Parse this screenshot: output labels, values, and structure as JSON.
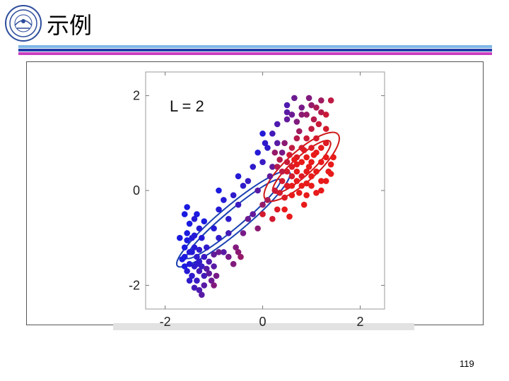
{
  "slide": {
    "title": "示例",
    "page_number": "119"
  },
  "colors": {
    "header_bar_light": "#7fb6e6",
    "header_bar_dark": "#1f3fa8",
    "header_bar_magenta": "#c83fc0",
    "blue": "#1a1ae0",
    "red": "#e81a1a"
  },
  "logo_icon": "university-seal-icon",
  "chart_data": {
    "type": "scatter",
    "annotation": "L = 2",
    "xlim": [
      -2.4,
      2.5
    ],
    "ylim": [
      -2.5,
      2.5
    ],
    "xticks": [
      -2,
      0,
      2
    ],
    "yticks": [
      -2,
      0,
      2
    ],
    "xtick_labels": [
      "-2",
      "0",
      "2"
    ],
    "ytick_labels": [
      "-2",
      "0",
      "2"
    ],
    "grid": false,
    "ellipses": [
      {
        "color": "#1a3fb0",
        "cx": -0.6,
        "cy": -0.6,
        "rx": 1.5,
        "ry": 0.28,
        "angle": 40
      },
      {
        "color": "#1a3fb0",
        "cx": -0.6,
        "cy": -0.6,
        "rx": 1.25,
        "ry": 0.18,
        "angle": 40
      },
      {
        "color": "#d01818",
        "cx": 0.8,
        "cy": 0.5,
        "rx": 1.0,
        "ry": 0.32,
        "angle": 42
      },
      {
        "color": "#d01818",
        "cx": 0.8,
        "cy": 0.5,
        "rx": 0.78,
        "ry": 0.2,
        "angle": 42
      }
    ],
    "points": [
      {
        "x": -1.6,
        "y": -0.5,
        "t": 0.0
      },
      {
        "x": -1.5,
        "y": -0.7,
        "t": 0.0
      },
      {
        "x": -1.4,
        "y": -0.6,
        "t": 0.05
      },
      {
        "x": -1.55,
        "y": -0.9,
        "t": 0.0
      },
      {
        "x": -1.45,
        "y": -1.0,
        "t": 0.05
      },
      {
        "x": -1.3,
        "y": -0.8,
        "t": 0.05
      },
      {
        "x": -1.6,
        "y": -1.2,
        "t": 0.0
      },
      {
        "x": -1.5,
        "y": -1.3,
        "t": 0.05
      },
      {
        "x": -1.4,
        "y": -1.2,
        "t": 0.05
      },
      {
        "x": -1.35,
        "y": -1.4,
        "t": 0.1
      },
      {
        "x": -1.6,
        "y": -1.4,
        "t": 0.0
      },
      {
        "x": -1.5,
        "y": -1.55,
        "t": 0.05
      },
      {
        "x": -1.4,
        "y": -1.6,
        "t": 0.1
      },
      {
        "x": -1.3,
        "y": -1.5,
        "t": 0.1
      },
      {
        "x": -1.55,
        "y": -1.7,
        "t": 0.05
      },
      {
        "x": -1.45,
        "y": -1.8,
        "t": 0.1
      },
      {
        "x": -1.35,
        "y": -1.9,
        "t": 0.15
      },
      {
        "x": -1.4,
        "y": -2.05,
        "t": 0.2
      },
      {
        "x": -1.3,
        "y": -2.1,
        "t": 0.25
      },
      {
        "x": -1.5,
        "y": -1.9,
        "t": 0.1
      },
      {
        "x": -1.2,
        "y": -1.8,
        "t": 0.2
      },
      {
        "x": -1.25,
        "y": -1.6,
        "t": 0.15
      },
      {
        "x": -1.2,
        "y": -1.4,
        "t": 0.15
      },
      {
        "x": -1.15,
        "y": -1.2,
        "t": 0.1
      },
      {
        "x": -1.1,
        "y": -1.5,
        "t": 0.25
      },
      {
        "x": -1.0,
        "y": -1.6,
        "t": 0.3
      },
      {
        "x": -1.1,
        "y": -1.75,
        "t": 0.35
      },
      {
        "x": -0.95,
        "y": -1.8,
        "t": 0.45
      },
      {
        "x": -1.05,
        "y": -1.9,
        "t": 0.4
      },
      {
        "x": -1.2,
        "y": -2.0,
        "t": 0.3
      },
      {
        "x": -1.7,
        "y": -1.0,
        "t": 0.0
      },
      {
        "x": -1.25,
        "y": -1.0,
        "t": 0.05
      },
      {
        "x": -1.35,
        "y": -0.5,
        "t": 0.0
      },
      {
        "x": -1.0,
        "y": -0.8,
        "t": 0.05
      },
      {
        "x": -0.9,
        "y": -1.0,
        "t": 0.1
      },
      {
        "x": -0.8,
        "y": -1.3,
        "t": 0.3
      },
      {
        "x": -0.55,
        "y": -1.2,
        "t": 0.5
      },
      {
        "x": -0.5,
        "y": -1.3,
        "t": 0.55
      },
      {
        "x": -0.45,
        "y": -1.4,
        "t": 0.6
      },
      {
        "x": -1.3,
        "y": -1.7,
        "t": 0.2
      },
      {
        "x": -1.45,
        "y": -1.3,
        "t": 0.05
      },
      {
        "x": -1.6,
        "y": -1.6,
        "t": 0.0
      },
      {
        "x": -1.3,
        "y": -1.25,
        "t": 0.1
      },
      {
        "x": -1.4,
        "y": -0.95,
        "t": 0.05
      },
      {
        "x": -1.2,
        "y": -0.65,
        "t": 0.0
      },
      {
        "x": -0.9,
        "y": -0.4,
        "t": 0.05
      },
      {
        "x": -0.8,
        "y": -0.2,
        "t": 0.05
      },
      {
        "x": -0.9,
        "y": 0.0,
        "t": 0.0
      },
      {
        "x": -0.6,
        "y": -0.1,
        "t": 0.1
      },
      {
        "x": -0.7,
        "y": -0.6,
        "t": 0.1
      },
      {
        "x": -0.5,
        "y": -0.3,
        "t": 0.15
      },
      {
        "x": -0.4,
        "y": 0.1,
        "t": 0.1
      },
      {
        "x": -0.3,
        "y": 0.2,
        "t": 0.15
      },
      {
        "x": -0.5,
        "y": 0.3,
        "t": 0.05
      },
      {
        "x": -0.2,
        "y": 0.5,
        "t": 0.1
      },
      {
        "x": -0.3,
        "y": -0.6,
        "t": 0.4
      },
      {
        "x": -0.1,
        "y": -0.8,
        "t": 0.55
      },
      {
        "x": 0.0,
        "y": -0.3,
        "t": 0.6
      },
      {
        "x": -0.1,
        "y": 0.0,
        "t": 0.3
      },
      {
        "x": 0.0,
        "y": 0.6,
        "t": 0.15
      },
      {
        "x": 0.1,
        "y": 0.9,
        "t": 0.1
      },
      {
        "x": 0.0,
        "y": 1.2,
        "t": 0.05
      },
      {
        "x": 0.05,
        "y": 1.0,
        "t": 0.1
      },
      {
        "x": -0.1,
        "y": 0.8,
        "t": 0.05
      },
      {
        "x": 0.15,
        "y": 0.3,
        "t": 0.35
      },
      {
        "x": 0.2,
        "y": 0.5,
        "t": 0.35
      },
      {
        "x": 0.2,
        "y": 1.2,
        "t": 0.2
      },
      {
        "x": 0.3,
        "y": 1.0,
        "t": 0.3
      },
      {
        "x": 0.4,
        "y": 0.8,
        "t": 0.45
      },
      {
        "x": 0.3,
        "y": 1.4,
        "t": 0.25
      },
      {
        "x": 0.5,
        "y": 1.5,
        "t": 0.35
      },
      {
        "x": 0.5,
        "y": 1.8,
        "t": 0.25
      },
      {
        "x": 0.5,
        "y": 1.65,
        "t": 0.3
      },
      {
        "x": 0.6,
        "y": 1.6,
        "t": 0.4
      },
      {
        "x": 0.7,
        "y": 1.45,
        "t": 0.5
      },
      {
        "x": 0.8,
        "y": 1.6,
        "t": 0.55
      },
      {
        "x": 0.8,
        "y": 1.75,
        "t": 0.45
      },
      {
        "x": 0.9,
        "y": 1.6,
        "t": 0.6
      },
      {
        "x": 1.0,
        "y": 1.8,
        "t": 0.6
      },
      {
        "x": 1.1,
        "y": 1.75,
        "t": 0.7
      },
      {
        "x": 1.2,
        "y": 1.65,
        "t": 0.75
      },
      {
        "x": 1.3,
        "y": 1.6,
        "t": 0.85
      },
      {
        "x": 1.15,
        "y": 1.4,
        "t": 0.85
      },
      {
        "x": 1.4,
        "y": 1.9,
        "t": 0.8
      },
      {
        "x": 1.2,
        "y": 1.9,
        "t": 0.65
      },
      {
        "x": 1.3,
        "y": 1.3,
        "t": 0.9
      },
      {
        "x": 1.0,
        "y": 1.3,
        "t": 0.8
      },
      {
        "x": 0.9,
        "y": 1.1,
        "t": 0.85
      },
      {
        "x": 1.1,
        "y": 1.1,
        "t": 0.9
      },
      {
        "x": 1.0,
        "y": 0.9,
        "t": 0.95
      },
      {
        "x": 0.8,
        "y": 0.9,
        "t": 0.9
      },
      {
        "x": 0.7,
        "y": 1.1,
        "t": 0.75
      },
      {
        "x": 0.6,
        "y": 0.9,
        "t": 0.8
      },
      {
        "x": 0.5,
        "y": 0.6,
        "t": 0.85
      },
      {
        "x": 0.6,
        "y": 0.5,
        "t": 0.95
      },
      {
        "x": 0.7,
        "y": 0.7,
        "t": 0.95
      },
      {
        "x": 0.8,
        "y": 0.6,
        "t": 1.0
      },
      {
        "x": 0.9,
        "y": 0.7,
        "t": 1.0
      },
      {
        "x": 1.0,
        "y": 0.6,
        "t": 1.0
      },
      {
        "x": 1.1,
        "y": 0.8,
        "t": 1.0
      },
      {
        "x": 1.2,
        "y": 0.9,
        "t": 1.0
      },
      {
        "x": 1.3,
        "y": 1.0,
        "t": 0.95
      },
      {
        "x": 1.2,
        "y": 0.6,
        "t": 1.0
      },
      {
        "x": 1.3,
        "y": 0.7,
        "t": 1.0
      },
      {
        "x": 1.35,
        "y": 0.4,
        "t": 1.0
      },
      {
        "x": 1.4,
        "y": 0.55,
        "t": 1.0
      },
      {
        "x": 1.1,
        "y": 0.4,
        "t": 1.0
      },
      {
        "x": 1.0,
        "y": 0.3,
        "t": 1.0
      },
      {
        "x": 0.9,
        "y": 0.4,
        "t": 1.0
      },
      {
        "x": 0.8,
        "y": 0.3,
        "t": 0.95
      },
      {
        "x": 0.7,
        "y": 0.4,
        "t": 1.0
      },
      {
        "x": 0.6,
        "y": 0.3,
        "t": 0.9
      },
      {
        "x": 0.5,
        "y": 0.4,
        "t": 0.9
      },
      {
        "x": 0.4,
        "y": 0.4,
        "t": 0.8
      },
      {
        "x": 0.3,
        "y": 0.5,
        "t": 0.75
      },
      {
        "x": 0.4,
        "y": 0.2,
        "t": 0.9
      },
      {
        "x": 0.5,
        "y": 0.1,
        "t": 0.95
      },
      {
        "x": 0.6,
        "y": 0.1,
        "t": 1.0
      },
      {
        "x": 0.7,
        "y": 0.2,
        "t": 1.0
      },
      {
        "x": 0.8,
        "y": 0.1,
        "t": 1.0
      },
      {
        "x": 0.9,
        "y": 0.15,
        "t": 1.0
      },
      {
        "x": 1.0,
        "y": 0.1,
        "t": 1.0
      },
      {
        "x": 1.2,
        "y": 0.2,
        "t": 1.0
      },
      {
        "x": 1.3,
        "y": 0.2,
        "t": 1.0
      },
      {
        "x": 1.4,
        "y": 0.35,
        "t": 1.0
      },
      {
        "x": 1.45,
        "y": 0.7,
        "t": 1.0
      },
      {
        "x": 1.2,
        "y": 0.0,
        "t": 1.0
      },
      {
        "x": 1.1,
        "y": -0.05,
        "t": 1.0
      },
      {
        "x": 0.9,
        "y": -0.1,
        "t": 1.0
      },
      {
        "x": 0.75,
        "y": -0.05,
        "t": 1.0
      },
      {
        "x": 0.6,
        "y": -0.1,
        "t": 1.0
      },
      {
        "x": 0.45,
        "y": -0.15,
        "t": 0.95
      },
      {
        "x": 0.35,
        "y": -0.05,
        "t": 0.9
      },
      {
        "x": 0.25,
        "y": 0.0,
        "t": 0.85
      },
      {
        "x": 0.3,
        "y": -0.4,
        "t": 0.95
      },
      {
        "x": 0.45,
        "y": -0.4,
        "t": 1.0
      },
      {
        "x": 0.0,
        "y": -0.5,
        "t": 0.9
      },
      {
        "x": 0.7,
        "y": 0.55,
        "t": 1.0
      },
      {
        "x": 0.55,
        "y": 0.75,
        "t": 0.9
      },
      {
        "x": 0.95,
        "y": 0.5,
        "t": 1.0
      },
      {
        "x": 1.05,
        "y": 0.75,
        "t": 1.0
      },
      {
        "x": 0.85,
        "y": 0.85,
        "t": 0.95
      },
      {
        "x": 0.65,
        "y": 0.65,
        "t": 1.0
      },
      {
        "x": 0.35,
        "y": 0.65,
        "t": 0.75
      },
      {
        "x": 0.25,
        "y": 0.8,
        "t": 0.6
      },
      {
        "x": 0.45,
        "y": 1.0,
        "t": 0.55
      },
      {
        "x": 0.75,
        "y": 1.25,
        "t": 0.65
      },
      {
        "x": 1.05,
        "y": 1.5,
        "t": 0.75
      },
      {
        "x": 0.95,
        "y": 1.95,
        "t": 0.5
      },
      {
        "x": 0.65,
        "y": 1.95,
        "t": 0.4
      },
      {
        "x": -0.9,
        "y": -1.3,
        "t": 0.4
      },
      {
        "x": -0.7,
        "y": -1.4,
        "t": 0.45
      },
      {
        "x": -0.6,
        "y": -1.55,
        "t": 0.5
      },
      {
        "x": -1.0,
        "y": -1.35,
        "t": 0.35
      },
      {
        "x": -1.15,
        "y": -1.65,
        "t": 0.3
      },
      {
        "x": -1.35,
        "y": -1.55,
        "t": 0.1
      },
      {
        "x": -1.0,
        "y": -2.0,
        "t": 0.5
      },
      {
        "x": -1.25,
        "y": -2.2,
        "t": 0.3
      },
      {
        "x": -1.55,
        "y": -1.05,
        "t": 0.0
      },
      {
        "x": -1.65,
        "y": -1.45,
        "t": 0.0
      },
      {
        "x": -1.55,
        "y": -0.35,
        "t": 0.0
      },
      {
        "x": -0.7,
        "y": -0.9,
        "t": 0.2
      },
      {
        "x": -0.4,
        "y": -0.9,
        "t": 0.45
      },
      {
        "x": -0.2,
        "y": -0.5,
        "t": 0.35
      },
      {
        "x": 0.1,
        "y": -0.2,
        "t": 0.7
      },
      {
        "x": 0.2,
        "y": -0.6,
        "t": 0.9
      },
      {
        "x": 0.55,
        "y": -0.55,
        "t": 1.0
      },
      {
        "x": 0.85,
        "y": -0.3,
        "t": 1.0
      }
    ]
  }
}
